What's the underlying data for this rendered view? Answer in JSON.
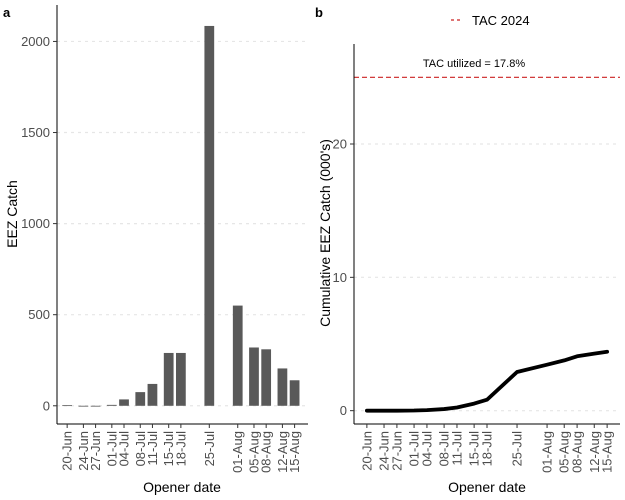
{
  "chart_data": [
    {
      "panel": "a",
      "type": "bar",
      "xlabel": "Opener date",
      "ylabel": "EEZ Catch",
      "ylim": [
        -100,
        2200
      ],
      "yticks": [
        0,
        500,
        1000,
        1500,
        2000
      ],
      "grid": "horizontal dotted",
      "bar_color": "#595959",
      "categories": [
        "20-Jun",
        "24-Jun",
        "27-Jun",
        "01-Jul",
        "04-Jul",
        "08-Jul",
        "11-Jul",
        "15-Jul",
        "18-Jul",
        "25-Jul",
        "01-Aug",
        "05-Aug",
        "08-Aug",
        "12-Aug",
        "15-Aug"
      ],
      "category_days": [
        0,
        4,
        7,
        11,
        14,
        18,
        21,
        25,
        28,
        35,
        42,
        46,
        49,
        53,
        56
      ],
      "values": [
        3,
        0,
        0,
        5,
        35,
        75,
        120,
        290,
        290,
        2085,
        550,
        320,
        310,
        205,
        140
      ]
    },
    {
      "panel": "b",
      "type": "line",
      "xlabel": "Opener date",
      "ylabel": "Cumulative EEZ Catch (000's)",
      "ylim": [
        -1.0,
        27.5
      ],
      "yticks": [
        0,
        10,
        20
      ],
      "grid": "horizontal dotted",
      "categories": [
        "20-Jun",
        "24-Jun",
        "27-Jun",
        "01-Jul",
        "04-Jul",
        "08-Jul",
        "11-Jul",
        "15-Jul",
        "18-Jul",
        "25-Jul",
        "01-Aug",
        "05-Aug",
        "08-Aug",
        "12-Aug",
        "15-Aug"
      ],
      "category_days": [
        0,
        4,
        7,
        11,
        14,
        18,
        21,
        25,
        28,
        35,
        42,
        46,
        49,
        53,
        56
      ],
      "values": [
        0.0,
        0.0,
        0.0,
        0.01,
        0.04,
        0.12,
        0.24,
        0.53,
        0.82,
        2.9,
        3.45,
        3.77,
        4.08,
        4.28,
        4.42
      ],
      "line_color": "#000000",
      "reference_line": {
        "value": 25,
        "label": "TAC 2024",
        "color": "#cc2222",
        "style": "dashed"
      },
      "legend": "top",
      "annotation": "TAC utilized = 17.8%"
    }
  ]
}
